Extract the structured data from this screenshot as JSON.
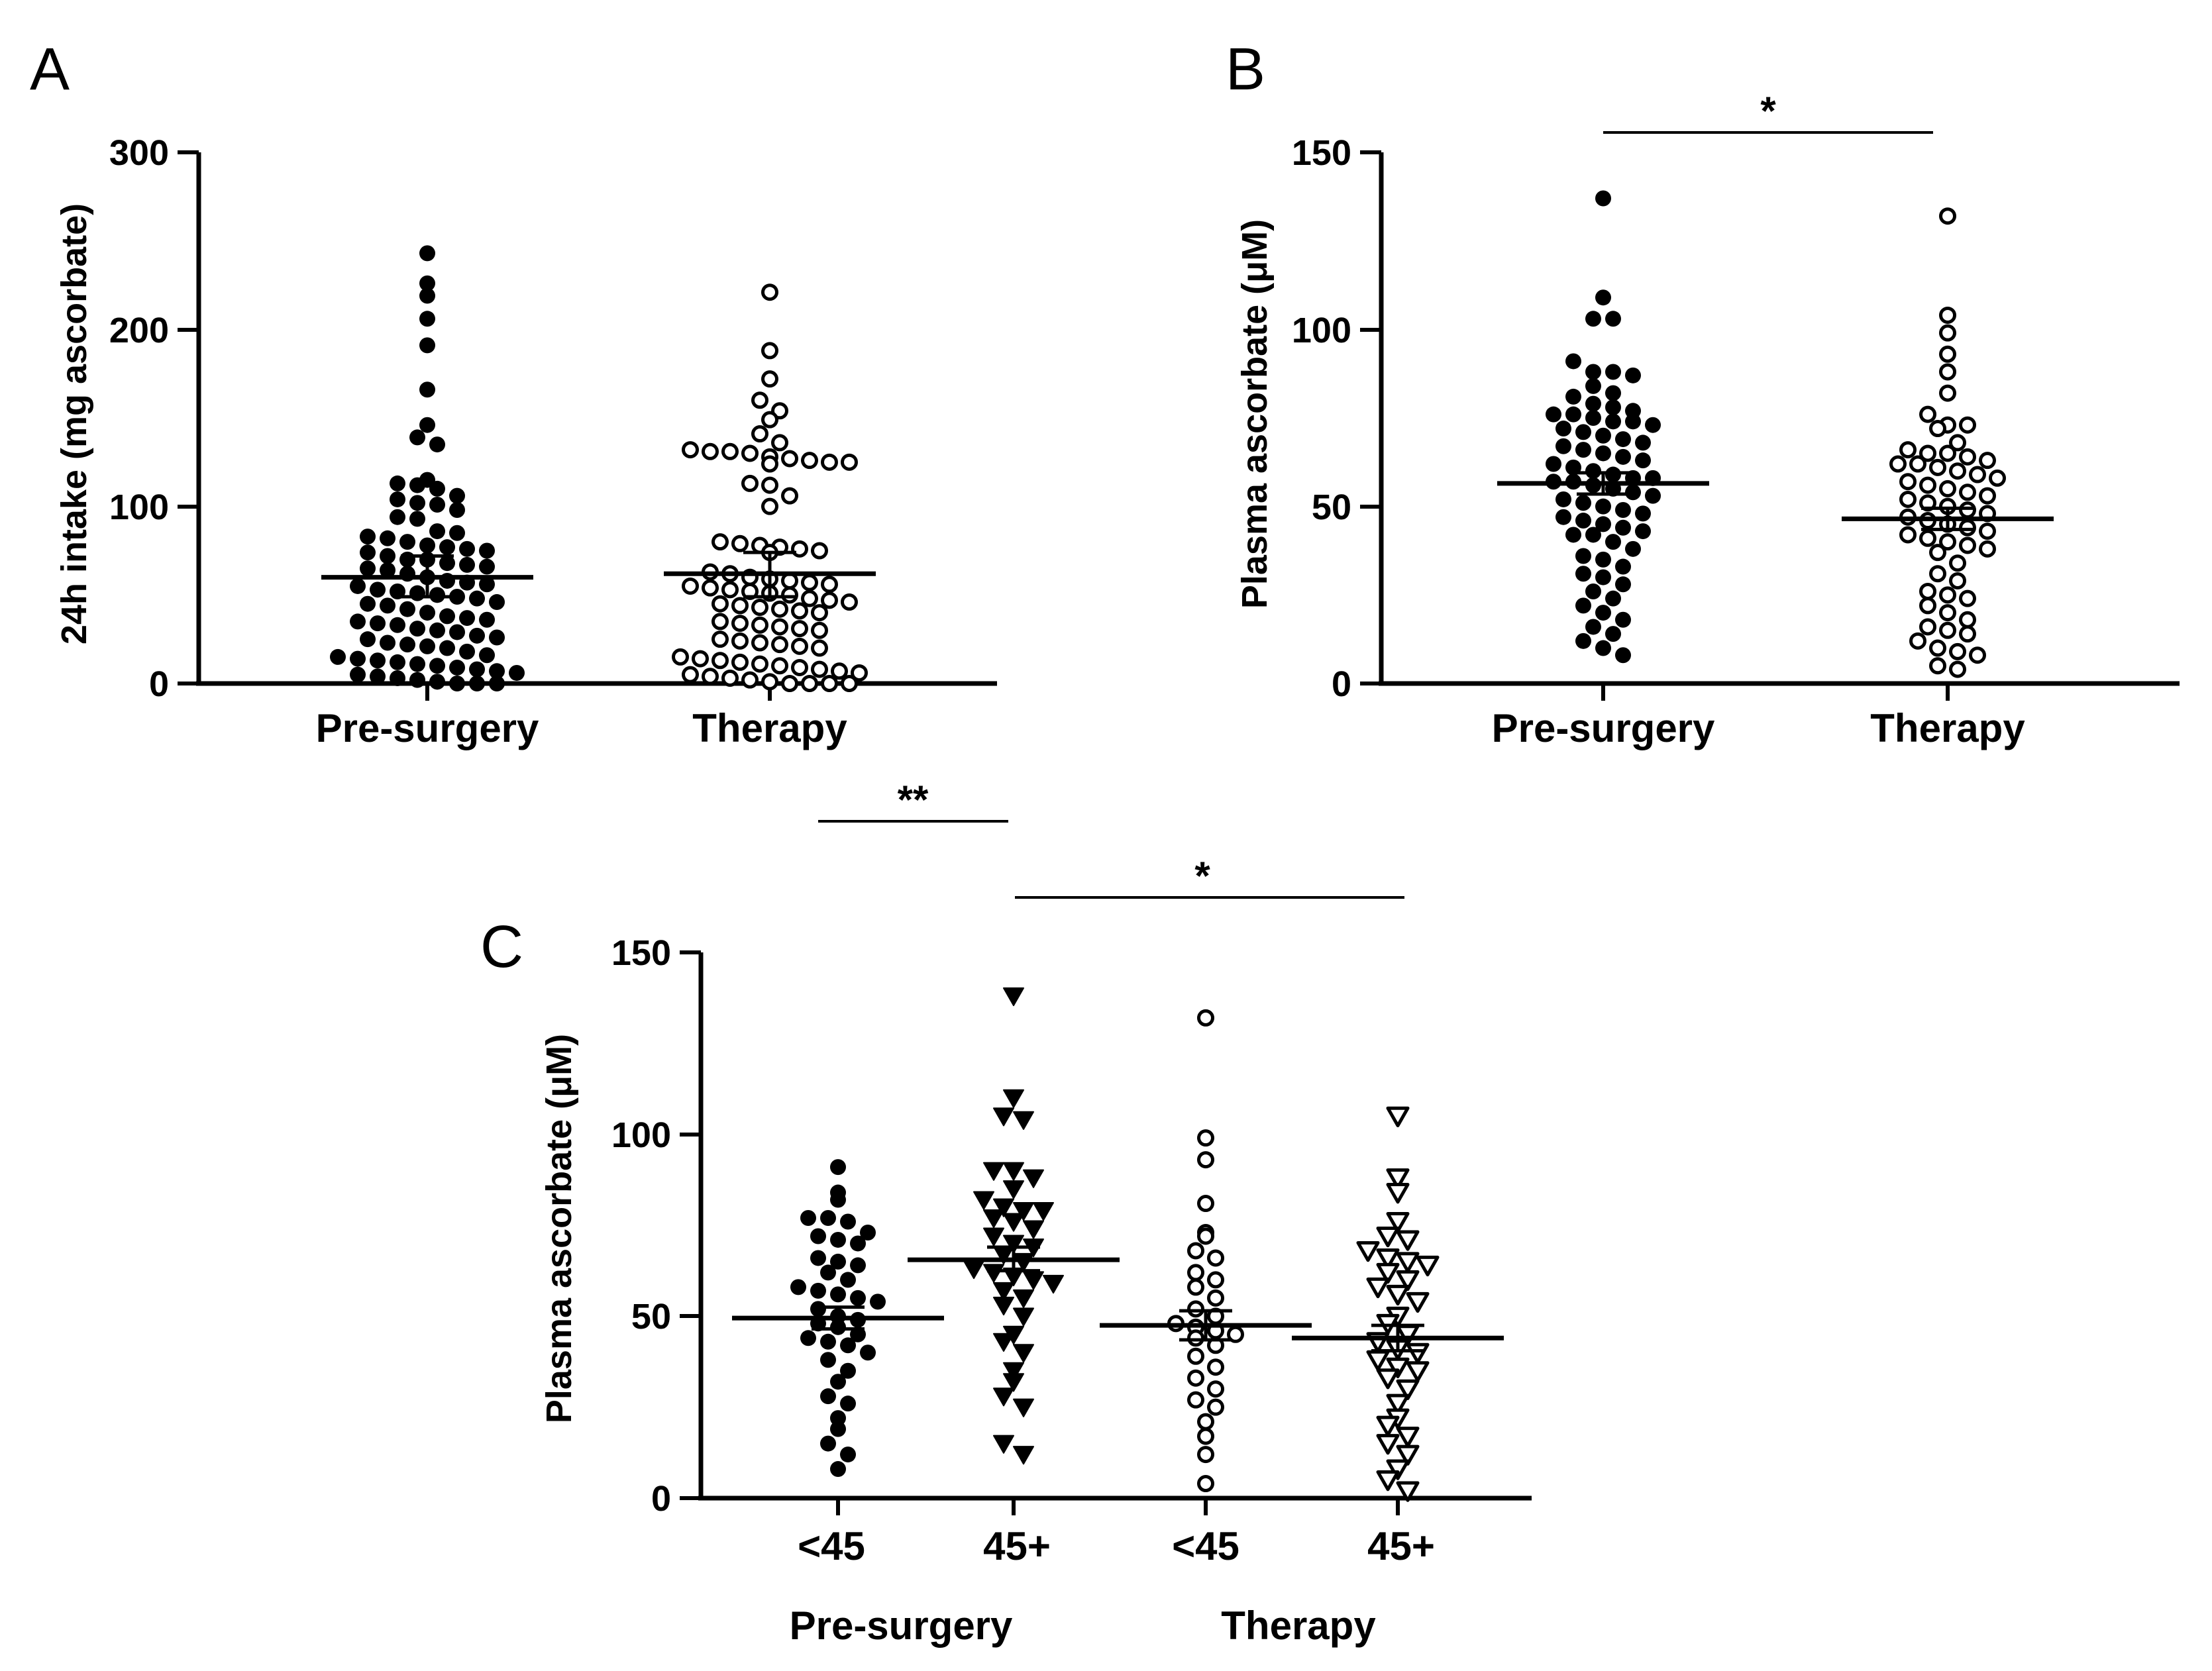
{
  "chart_data": [
    {
      "id": "A",
      "panel_label": "A",
      "type": "scatter",
      "ylabel": "24h intake (mg ascorbate)",
      "ylim": [
        0,
        300
      ],
      "yticks": [
        "0",
        "100",
        "200",
        "300"
      ],
      "groups": [
        {
          "name": "Pre-surgery",
          "marker": "filled-circle",
          "mean": 60,
          "sem_low": 49,
          "sem_high": 72,
          "values": [
            243,
            226,
            219,
            206,
            191,
            166,
            146,
            139,
            135,
            115,
            113,
            112,
            110,
            106,
            104,
            102,
            101,
            98,
            94,
            93,
            86,
            85,
            83,
            82,
            80,
            78,
            77,
            76,
            75,
            74,
            72,
            70,
            70,
            68,
            67,
            66,
            65,
            64,
            62,
            60,
            58,
            57,
            56,
            55,
            53,
            52,
            51,
            50,
            49,
            48,
            46,
            45,
            44,
            42,
            40,
            38,
            37,
            36,
            35,
            34,
            33,
            31,
            30,
            29,
            27,
            26,
            25,
            23,
            22,
            21,
            20,
            18,
            16,
            15,
            14,
            13,
            12,
            11,
            10,
            9,
            8,
            7,
            6,
            5,
            4,
            3,
            2,
            1,
            0,
            0,
            0
          ]
        },
        {
          "name": "Therapy",
          "marker": "open-circle",
          "mean": 62,
          "sem_low": 49,
          "sem_high": 74,
          "values": [
            221,
            188,
            172,
            160,
            154,
            149,
            141,
            136,
            132,
            131,
            131,
            130,
            128,
            127,
            126,
            125,
            125,
            124,
            113,
            112,
            106,
            100,
            80,
            79,
            78,
            77,
            76,
            75,
            74,
            63,
            62,
            60,
            59,
            58,
            57,
            56,
            55,
            54,
            53,
            52,
            51,
            50,
            48,
            47,
            46,
            45,
            44,
            43,
            42,
            41,
            40,
            35,
            34,
            33,
            32,
            31,
            30,
            25,
            24,
            23,
            22,
            21,
            20,
            15,
            14,
            13,
            12,
            11,
            10,
            9,
            8,
            7,
            6,
            5,
            4,
            3,
            2,
            1,
            0,
            0,
            0,
            0
          ]
        }
      ]
    },
    {
      "id": "B",
      "panel_label": "B",
      "type": "scatter",
      "ylabel": "Plasma ascorbate (μM)",
      "ylim": [
        0,
        150
      ],
      "yticks": [
        "0",
        "50",
        "100",
        "150"
      ],
      "significance": [
        {
          "label": "*",
          "from": "Pre-surgery",
          "to": "Therapy"
        }
      ],
      "groups": [
        {
          "name": "Pre-surgery",
          "marker": "filled-circle",
          "mean": 56.5,
          "sem_low": 53.5,
          "sem_high": 59.5,
          "values": [
            137,
            109,
            103,
            103,
            91,
            88,
            88,
            87,
            84,
            82,
            81,
            79,
            78,
            77,
            76,
            76,
            75,
            74,
            74,
            73,
            72,
            71,
            70,
            69,
            68,
            67,
            66,
            65,
            64,
            63,
            62,
            61,
            60,
            59,
            58,
            58,
            57,
            57,
            56,
            55,
            54,
            53,
            52,
            51,
            50,
            49,
            48,
            47,
            46,
            45,
            44,
            43,
            42,
            42,
            40,
            38,
            36,
            35,
            33,
            31,
            30,
            28,
            26,
            24,
            22,
            20,
            18,
            16,
            14,
            12,
            10,
            8
          ]
        },
        {
          "name": "Therapy",
          "marker": "open-circle",
          "mean": 46.5,
          "sem_low": 43.5,
          "sem_high": 49.5,
          "values": [
            132,
            104,
            99,
            93,
            88,
            82,
            76,
            73,
            73,
            72,
            68,
            66,
            65,
            65,
            64,
            63,
            62,
            62,
            61,
            60,
            59,
            58,
            57,
            56,
            55,
            54,
            53,
            52,
            51,
            50,
            49,
            48,
            47,
            46,
            45,
            44,
            43,
            42,
            41,
            40,
            39,
            38,
            37,
            34,
            31,
            29,
            26,
            25,
            24,
            22,
            20,
            18,
            16,
            15,
            14,
            12,
            10,
            9,
            8,
            5,
            4
          ]
        }
      ]
    },
    {
      "id": "C",
      "panel_label": "C",
      "type": "scatter",
      "ylabel": "Plasma ascorbate (μM)",
      "ylim": [
        0,
        150
      ],
      "yticks": [
        "0",
        "50",
        "100",
        "150"
      ],
      "group_labels": [
        "Pre-surgery",
        "Therapy"
      ],
      "significance": [
        {
          "label": "**",
          "from": "<45 (Pre-surgery)",
          "to": "45+ (Pre-surgery)"
        },
        {
          "label": "*",
          "from": "45+ (Pre-surgery)",
          "to": "45+ (Therapy)"
        }
      ],
      "groups": [
        {
          "name": "<45",
          "marker": "filled-circle",
          "mean": 49.5,
          "sem_low": 46.5,
          "sem_high": 52.5,
          "values": [
            91,
            84,
            82,
            77,
            77,
            76,
            73,
            72,
            71,
            70,
            66,
            65,
            64,
            62,
            60,
            58,
            57,
            56,
            55,
            54,
            52,
            50,
            49,
            48,
            47,
            45,
            44,
            43,
            42,
            40,
            38,
            35,
            32,
            28,
            26,
            22,
            19,
            15,
            12,
            8
          ]
        },
        {
          "name": "45+",
          "marker": "filled-triangle-down",
          "mean": 65.5,
          "sem_low": 62.5,
          "sem_high": 69,
          "values": [
            138,
            110,
            105,
            104,
            90,
            90,
            88,
            85,
            82,
            80,
            79,
            79,
            77,
            76,
            74,
            72,
            70,
            69,
            67,
            65,
            63,
            62,
            61,
            60,
            59,
            57,
            55,
            53,
            50,
            45,
            43,
            40,
            35,
            32,
            28,
            25,
            15,
            12
          ]
        },
        {
          "name": "<45",
          "marker": "open-circle",
          "mean": 47.5,
          "sem_low": 43.5,
          "sem_high": 51.5,
          "values": [
            132,
            99,
            93,
            81,
            73,
            72,
            68,
            66,
            62,
            60,
            58,
            55,
            52,
            50,
            48,
            47,
            46,
            45,
            44,
            42,
            39,
            36,
            33,
            30,
            27,
            25,
            21,
            17,
            12,
            4
          ]
        },
        {
          "name": "45+",
          "marker": "open-triangle-down",
          "mean": 44,
          "sem_low": 40.5,
          "sem_high": 47.5,
          "values": [
            105,
            88,
            84,
            76,
            72,
            71,
            68,
            66,
            65,
            64,
            62,
            60,
            58,
            56,
            54,
            50,
            48,
            45,
            43,
            41,
            40,
            38,
            36,
            35,
            33,
            30,
            26,
            22,
            20,
            17,
            15,
            12,
            8,
            5,
            2
          ]
        }
      ]
    }
  ]
}
